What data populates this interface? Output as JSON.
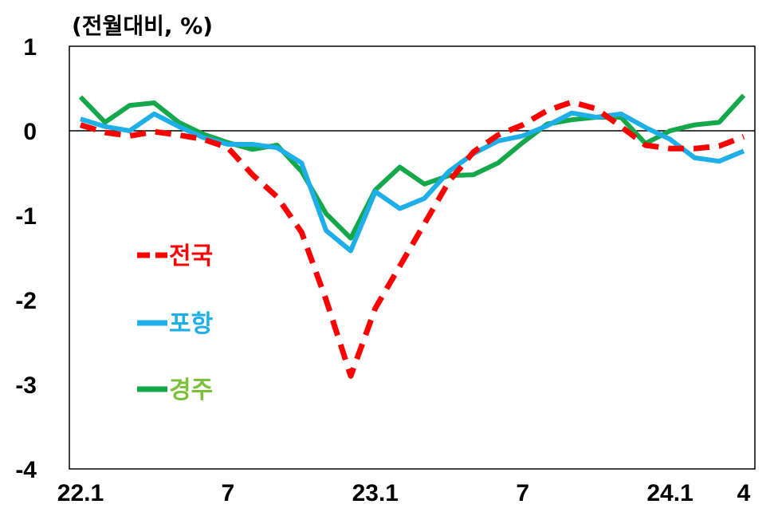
{
  "chart_data": {
    "type": "line",
    "unit_label": "(전월대비, %)",
    "x_tick_labels": [
      "22.1",
      "7",
      "23.1",
      "7",
      "24.1",
      "4"
    ],
    "x_tick_index": [
      0,
      6,
      12,
      18,
      24,
      27
    ],
    "ylim": [
      -4,
      1
    ],
    "y_ticks": [
      1,
      0,
      -1,
      -2,
      -3,
      -4
    ],
    "y_tick_labels": [
      "1",
      "0",
      "-1",
      "-2",
      "-3",
      "-4"
    ],
    "grid": false,
    "zero_line": true,
    "legend_position": "left",
    "series": [
      {
        "name": "전국",
        "color": "#ff0000",
        "style": "dashed",
        "values": [
          0.07,
          -0.02,
          -0.06,
          -0.01,
          -0.05,
          -0.1,
          -0.2,
          -0.52,
          -0.78,
          -1.2,
          -2.0,
          -2.9,
          -2.1,
          -1.6,
          -1.1,
          -0.6,
          -0.25,
          -0.05,
          0.07,
          0.24,
          0.34,
          0.26,
          0.05,
          -0.17,
          -0.21,
          -0.21,
          -0.18,
          -0.07
        ]
      },
      {
        "name": "포항",
        "color": "#1eaee8",
        "style": "solid",
        "values": [
          0.14,
          0.05,
          0.0,
          0.2,
          0.05,
          -0.08,
          -0.16,
          -0.16,
          -0.2,
          -0.38,
          -1.18,
          -1.42,
          -0.72,
          -0.92,
          -0.8,
          -0.48,
          -0.27,
          -0.12,
          -0.06,
          0.06,
          0.21,
          0.16,
          0.2,
          0.04,
          -0.1,
          -0.32,
          -0.36,
          -0.24
        ]
      },
      {
        "name": "경주",
        "color": "#14a84b",
        "style": "solid",
        "values": [
          0.4,
          0.1,
          0.3,
          0.33,
          0.1,
          -0.04,
          -0.14,
          -0.22,
          -0.17,
          -0.48,
          -0.98,
          -1.27,
          -0.7,
          -0.43,
          -0.63,
          -0.53,
          -0.52,
          -0.38,
          -0.14,
          0.08,
          0.13,
          0.16,
          0.16,
          -0.15,
          0.0,
          0.07,
          0.1,
          0.42
        ]
      }
    ]
  }
}
